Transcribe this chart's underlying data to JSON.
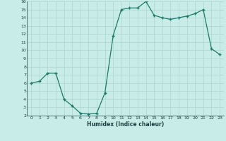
{
  "xlabel": "Humidex (Indice chaleur)",
  "x": [
    0,
    1,
    2,
    3,
    4,
    5,
    6,
    7,
    8,
    9,
    10,
    11,
    12,
    13,
    14,
    15,
    16,
    17,
    18,
    19,
    20,
    21,
    22,
    23
  ],
  "y": [
    6,
    6.2,
    7.2,
    7.2,
    4.0,
    3.2,
    2.3,
    2.2,
    2.3,
    4.8,
    11.8,
    15.0,
    15.2,
    15.2,
    16.0,
    14.3,
    14.0,
    13.8,
    14.0,
    14.2,
    14.5,
    15.0,
    10.2,
    9.5
  ],
  "line_color": "#1e7a6a",
  "marker_color": "#1e7a6a",
  "bg_color": "#c8ece8",
  "grid_color": "#b0d8d4",
  "text_color": "#1a4040",
  "ylim": [
    2,
    16
  ],
  "xlim": [
    -0.5,
    23.5
  ],
  "yticks": [
    2,
    3,
    4,
    5,
    6,
    7,
    8,
    9,
    10,
    11,
    12,
    13,
    14,
    15,
    16
  ],
  "xticks": [
    0,
    1,
    2,
    3,
    4,
    5,
    6,
    7,
    8,
    9,
    10,
    11,
    12,
    13,
    14,
    15,
    16,
    17,
    18,
    19,
    20,
    21,
    22,
    23
  ]
}
